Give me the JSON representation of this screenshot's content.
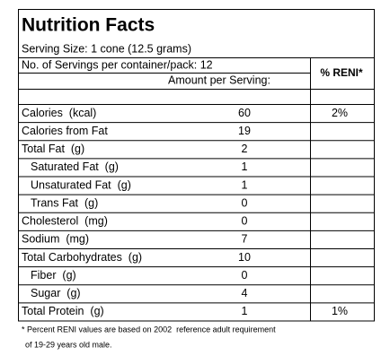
{
  "title": "Nutrition Facts",
  "serving_size": "Serving Size: 1 cone (12.5 grams)",
  "servings_per_container": "No. of Servings per container/pack: 12",
  "amount_header": "Amount per Serving:",
  "reni_header": "% RENI*",
  "rows": [
    {
      "name": "Calories  (kcal)",
      "amount": "60",
      "reni": "2%"
    },
    {
      "name": "Calories from Fat",
      "amount": "19"
    },
    {
      "name": "Total Fat  (g)",
      "amount": "2"
    },
    {
      "name": "Saturated Fat  (g)",
      "amount": "1"
    },
    {
      "name": "Unsaturated Fat  (g)",
      "amount": "1"
    },
    {
      "name": "Trans Fat  (g)",
      "amount": "0"
    },
    {
      "name": "Cholesterol  (mg)",
      "amount": "0"
    },
    {
      "name": "Sodium  (mg)",
      "amount": "7"
    },
    {
      "name": "Total Carbohydrates  (g)",
      "amount": "10"
    },
    {
      "name": "Fiber  (g)",
      "amount": "0"
    },
    {
      "name": "Sugar  (g)",
      "amount": "4"
    },
    {
      "name": "Total Protein  (g)",
      "amount": "1",
      "reni": "1%"
    }
  ],
  "footnote": [
    "* Percent RENI values are based on 2002  reference adult requirement",
    "of 19-29 years old male."
  ]
}
